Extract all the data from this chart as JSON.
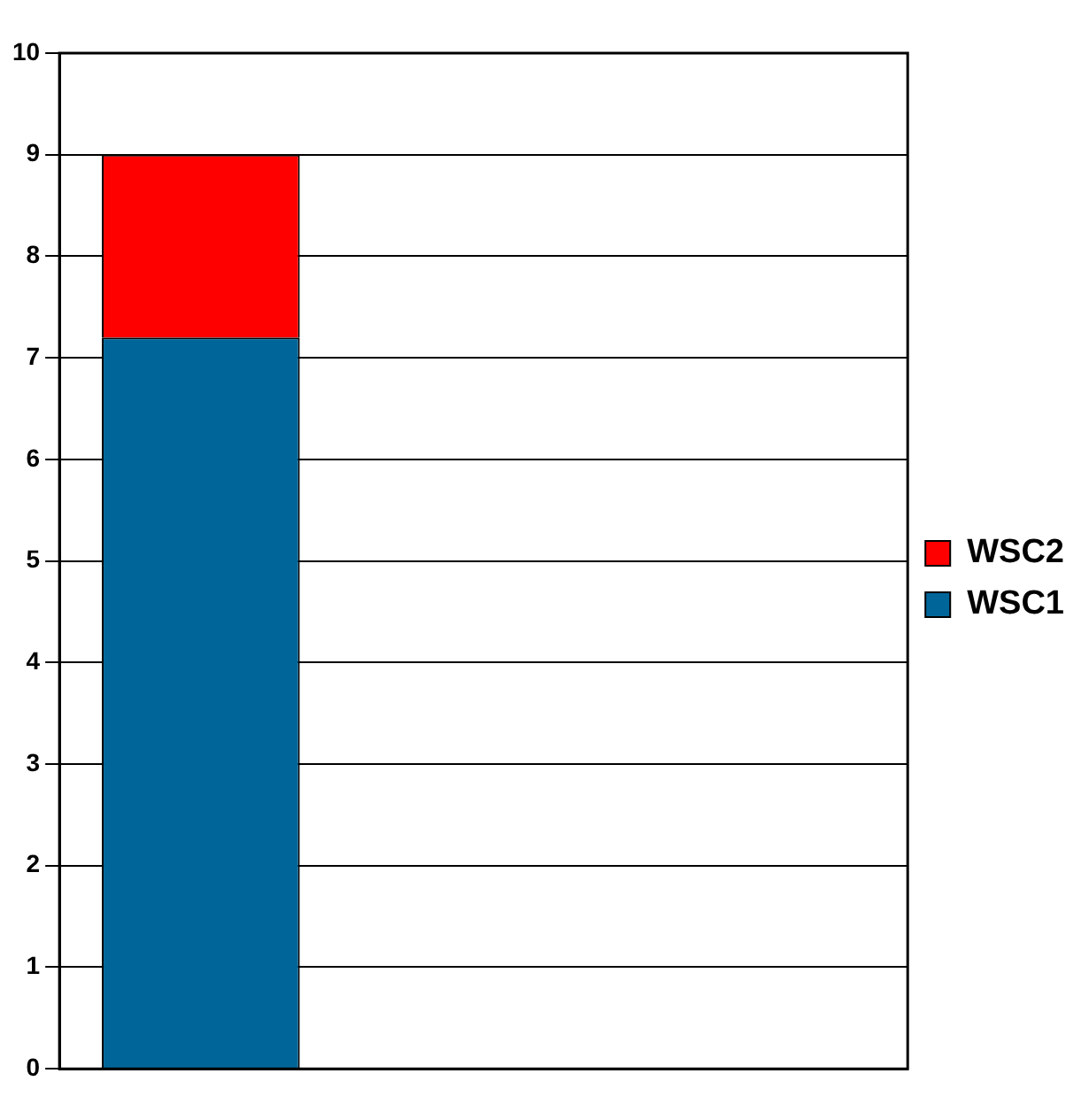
{
  "chart_data": {
    "type": "bar",
    "stacked": true,
    "categories": [
      null,
      null,
      null
    ],
    "series": [
      {
        "name": "WSC1",
        "color": "#006699",
        "values": [
          7.2,
          null,
          null
        ]
      },
      {
        "name": "WSC2",
        "color": "#ff0000",
        "values": [
          1.8,
          null,
          null
        ]
      }
    ],
    "ylim": [
      0,
      10
    ],
    "yticks": [
      0,
      1,
      2,
      3,
      4,
      5,
      6,
      7,
      8,
      9,
      10
    ],
    "grid": "y",
    "legend": "right"
  }
}
